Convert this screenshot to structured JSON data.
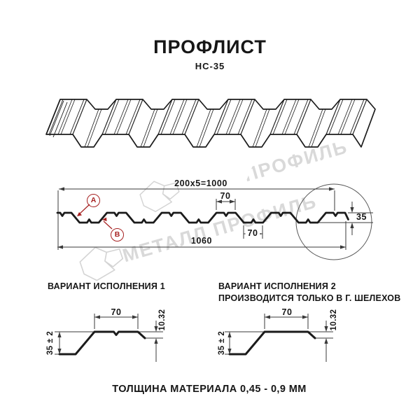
{
  "title": "ПРОФЛИСТ",
  "subtitle": "НС-35",
  "watermark": {
    "text": "МЕТАЛЛ ПРОФИЛЬ",
    "logo": "metall-profil-cloud-logo",
    "color": "#d9d9d9"
  },
  "cross_section": {
    "dims": {
      "pitch_total": "200x5=1000",
      "crest_width": "70",
      "valley_width": "70",
      "overall_width": "1060",
      "height": "35"
    },
    "labels": {
      "a": "А",
      "b": "В"
    }
  },
  "variants": [
    {
      "heading_line1": "ВАРИАНТ ИСПОЛНЕНИЯ 1",
      "heading_line2": "",
      "dims": {
        "top_width": "70",
        "lip_height": "10.32",
        "height": "35 ± 2"
      }
    },
    {
      "heading_line1": "ВАРИАНТ ИСПОЛНЕНИЯ 2",
      "heading_line2": "ПРОИЗВОДИТСЯ ТОЛЬКО В Г. ШЕЛЕХОВ",
      "dims": {
        "top_width": "70",
        "lip_height": "10.32",
        "height": "35 ± 2"
      }
    }
  ],
  "footer": "ТОЛЩИНА МАТЕРИАЛА 0,45 - 0,9 ММ",
  "colors": {
    "line": "#1b1b1b",
    "thin_line": "#3a3a3a",
    "accent_red": "#a62121",
    "watermark": "#d9d9d9",
    "background": "#ffffff"
  }
}
